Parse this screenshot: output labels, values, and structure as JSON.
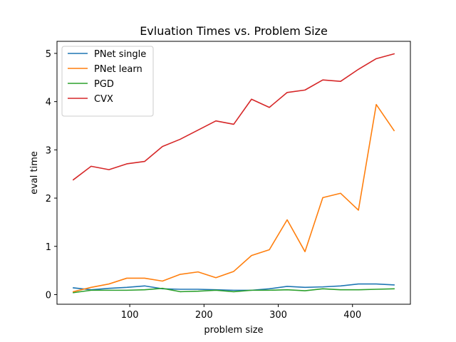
{
  "chart_data": {
    "type": "line",
    "title": "Evluation Times vs. Problem Size",
    "xlabel": "problem size",
    "ylabel": "eval time",
    "xlim": [
      2,
      478
    ],
    "ylim": [
      -0.2,
      5.25
    ],
    "xticks": [
      100,
      200,
      300,
      400
    ],
    "xtick_labels": [
      "100",
      "200",
      "300",
      "400"
    ],
    "yticks": [
      0,
      1,
      2,
      3,
      4,
      5
    ],
    "ytick_labels": [
      "0",
      "1",
      "2",
      "3",
      "4",
      "5"
    ],
    "grid": false,
    "legend_position": "top-left",
    "x": [
      24,
      48,
      72,
      96,
      120,
      144,
      168,
      192,
      216,
      240,
      264,
      288,
      312,
      336,
      360,
      384,
      408,
      432,
      456
    ],
    "series": [
      {
        "name": "PNet single",
        "color": "#1f77b4",
        "values": [
          0.14,
          0.1,
          0.13,
          0.15,
          0.18,
          0.12,
          0.11,
          0.11,
          0.1,
          0.09,
          0.09,
          0.12,
          0.17,
          0.15,
          0.16,
          0.18,
          0.22,
          0.22,
          0.2
        ]
      },
      {
        "name": "PNet learn",
        "color": "#ff7f0e",
        "values": [
          0.06,
          0.15,
          0.22,
          0.34,
          0.34,
          0.28,
          0.42,
          0.47,
          0.35,
          0.48,
          0.81,
          0.93,
          1.55,
          0.89,
          2.01,
          2.1,
          1.75,
          3.94,
          3.4
        ]
      },
      {
        "name": "PGD",
        "color": "#2ca02c",
        "values": [
          0.04,
          0.09,
          0.09,
          0.09,
          0.1,
          0.13,
          0.06,
          0.07,
          0.09,
          0.06,
          0.09,
          0.09,
          0.1,
          0.08,
          0.12,
          0.1,
          0.1,
          0.11,
          0.12
        ]
      },
      {
        "name": "CVX",
        "color": "#d62728",
        "values": [
          2.38,
          2.66,
          2.59,
          2.71,
          2.76,
          3.07,
          3.22,
          3.41,
          3.6,
          3.53,
          4.05,
          3.88,
          4.19,
          4.24,
          4.45,
          4.42,
          4.67,
          4.89,
          4.99
        ]
      }
    ]
  }
}
